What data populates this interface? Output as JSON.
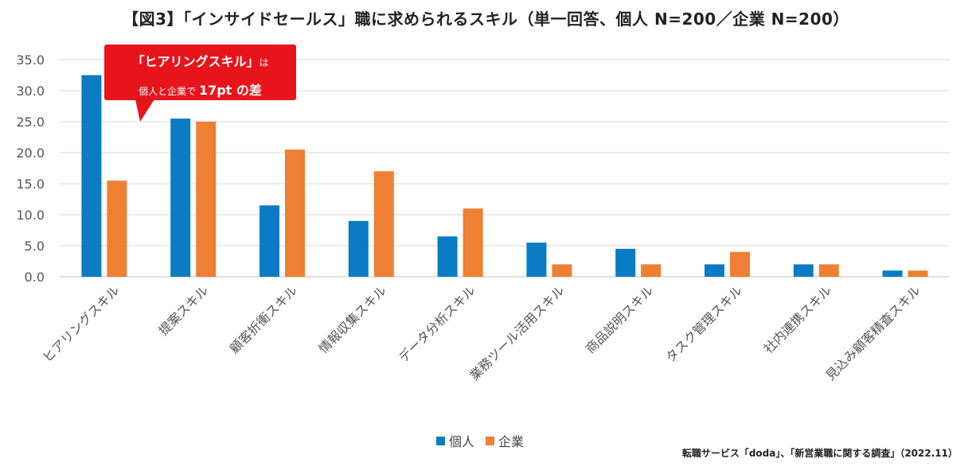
{
  "chart_data": {
    "type": "bar",
    "title": "【図3】「インサイドセールス」職に求められるスキル（単一回答、個人 N=200／企業 N=200）",
    "categories": [
      "ヒアリングスキル",
      "提案スキル",
      "顧客折衝スキル",
      "情報収集スキル",
      "データ分析スキル",
      "業務ツール活用スキル",
      "商品説明スキル",
      "タスク管理スキル",
      "社内連携スキル",
      "見込み顧客精査スキル"
    ],
    "series": [
      {
        "name": "個人",
        "color": "#0a7bc4",
        "values": [
          32.5,
          25.5,
          11.5,
          9.0,
          6.5,
          5.5,
          4.5,
          2.0,
          2.0,
          1.0
        ]
      },
      {
        "name": "企業",
        "color": "#ee7f33",
        "values": [
          15.5,
          25.0,
          20.5,
          17.0,
          11.0,
          2.0,
          2.0,
          4.0,
          2.0,
          1.0
        ]
      }
    ],
    "yticks": [
      "0.0",
      "5.0",
      "10.0",
      "15.0",
      "20.0",
      "25.0",
      "30.0",
      "35.0"
    ],
    "ylim": [
      0,
      35
    ],
    "grid": true,
    "legend_position": "bottom"
  },
  "callout": {
    "line1_main": "「ヒアリングスキル」",
    "line1_suffix": "は",
    "line2_prefix": "個人と企業で",
    "line2_emphasis": "17pt の差"
  },
  "source": "転職サービス「doda」、「新営業職に関する調査」（2022.11）",
  "colors": {
    "gridline": "#d9d9d9",
    "axis": "#bfbfbf",
    "callout": "#e8141b"
  }
}
